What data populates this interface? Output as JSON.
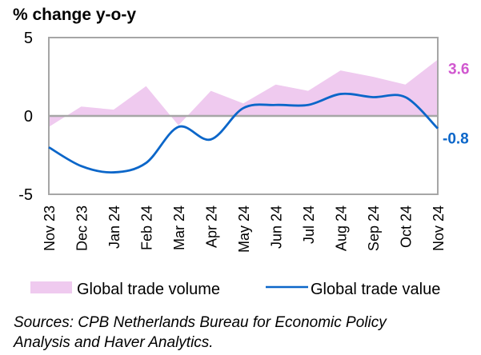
{
  "chart_data": {
    "type": "area",
    "title": "% change y-o-y",
    "xlabel": "",
    "ylabel": "% change y-o-y",
    "ylim": [
      -5,
      5
    ],
    "yticks": [
      "5",
      "0",
      "-5"
    ],
    "ytick_values": [
      5,
      0,
      -5
    ],
    "grid": false,
    "categories": [
      "Nov 23",
      "Dec 23",
      "Jan 24",
      "Feb 24",
      "Mar 24",
      "Apr 24",
      "May 24",
      "Jun 24",
      "Jul 24",
      "Aug 24",
      "Sep 24",
      "Oct 24",
      "Nov 24"
    ],
    "series": [
      {
        "name": "Global trade volume",
        "type": "area",
        "color": "#EFCAEF",
        "values": [
          -0.7,
          0.6,
          0.4,
          1.9,
          -0.6,
          1.6,
          0.8,
          2.0,
          1.6,
          2.9,
          2.5,
          2.0,
          3.6
        ],
        "end_label": "3.6",
        "end_label_color": "#D057CF"
      },
      {
        "name": "Global trade value",
        "type": "line",
        "color": "#0B66C9",
        "values": [
          -2.0,
          -3.2,
          -3.6,
          -3.0,
          -0.7,
          -1.5,
          0.5,
          0.7,
          0.7,
          1.4,
          1.2,
          1.2,
          -0.8
        ],
        "end_label": "-0.8",
        "end_label_color": "#0B66C9"
      }
    ],
    "legend_position": "bottom",
    "source": [
      "Sources: CPB Netherlands Bureau for Economic Policy",
      "Analysis and Haver Analytics."
    ]
  }
}
